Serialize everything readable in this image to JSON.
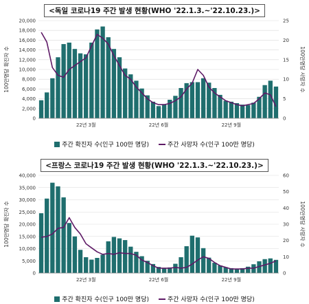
{
  "colors": {
    "bar": "#1f6e6e",
    "line": "#5e1a66",
    "grid": "#d9d9d9"
  },
  "chart_data": [
    {
      "type": "bar",
      "title": "<독일 코로나19 주간 발생 현황(WHO '22.1.3.~'22.10.23.)>",
      "ylabel_left": "100만명당 확진자 수",
      "ylabel_right": "100만명당 사망자 수",
      "ylim_left": [
        0,
        20000
      ],
      "yticks_left": [
        "0",
        "2,000",
        "4,000",
        "6,000",
        "8,000",
        "10,000",
        "12,000",
        "14,000",
        "16,000",
        "18,000",
        "20,000"
      ],
      "ylim_right": [
        0,
        25
      ],
      "yticks_right": [
        "0",
        "5",
        "10",
        "15",
        "20",
        "25"
      ],
      "xlabels": [
        {
          "index": 8,
          "label": "22년 3월"
        },
        {
          "index": 21,
          "label": "22년 6월"
        },
        {
          "index": 34,
          "label": "22년 9월"
        }
      ],
      "legend": {
        "bar": "주간 확진자 수(인구 100만 명당)",
        "line": "주간 사망자 수(인구 100만 명당)"
      },
      "series": [
        {
          "name": "주간 확진자 수(인구 100만 명당)",
          "kind": "bar",
          "values": [
            3700,
            5300,
            8200,
            12500,
            15200,
            15500,
            14200,
            13300,
            13100,
            15500,
            18200,
            18800,
            16600,
            14200,
            12500,
            10200,
            9000,
            7700,
            6100,
            4700,
            3400,
            2500,
            2900,
            3800,
            4600,
            6200,
            7200,
            7400,
            7400,
            8200,
            7300,
            6200,
            4800,
            3600,
            3400,
            3100,
            2800,
            2700,
            3200,
            4400,
            6800,
            7700,
            6500
          ]
        },
        {
          "name": "주간 사망자 수(인구 100만 명당)",
          "kind": "line",
          "values": [
            22,
            19.5,
            13,
            11,
            10.5,
            12.5,
            13.5,
            14.5,
            15.5,
            18.5,
            21.5,
            20.5,
            19,
            16,
            13.5,
            11,
            10,
            8,
            6.5,
            5,
            4,
            3.5,
            3.5,
            3.8,
            4.5,
            5.5,
            7.5,
            9,
            12.5,
            11,
            8,
            6.5,
            5.5,
            4.5,
            4,
            3.5,
            3.2,
            3.5,
            3.8,
            5,
            6.5,
            6,
            3
          ]
        }
      ]
    },
    {
      "type": "bar",
      "title": "<프랑스 코로나19 주간 발생 현황(WHO '22.1.3.~'22.10.23.)>",
      "ylabel_left": "100만명당 확진자 수",
      "ylabel_right": "100만명당 사망자 수",
      "ylim_left": [
        0,
        40000
      ],
      "yticks_left": [
        "0",
        "5,000",
        "10,000",
        "15,000",
        "20,000",
        "25,000",
        "30,000",
        "35,000",
        "40,000"
      ],
      "ylim_right": [
        0,
        60
      ],
      "yticks_right": [
        "0",
        "10",
        "20",
        "30",
        "40",
        "50",
        "60"
      ],
      "xlabels": [
        {
          "index": 8,
          "label": "22년 3월"
        },
        {
          "index": 21,
          "label": "22년 6월"
        },
        {
          "index": 34,
          "label": "22년 9월"
        }
      ],
      "legend": {
        "bar": "주간 확진자 수(인구 100만 명당)",
        "line": "주간 사망자 수(인구 100만 명당)"
      },
      "series": [
        {
          "name": "주간 확진자 수(인구 100만 명당)",
          "kind": "bar",
          "values": [
            24500,
            30500,
            37000,
            35500,
            31000,
            20500,
            15000,
            9500,
            6500,
            5500,
            6200,
            7500,
            13000,
            14800,
            14200,
            13500,
            10800,
            8700,
            6900,
            5000,
            3700,
            2500,
            2100,
            2300,
            3800,
            6500,
            11000,
            15300,
            14600,
            10200,
            6300,
            4200,
            3100,
            2400,
            2000,
            1800,
            2000,
            2600,
            3600,
            4800,
            5700,
            6000,
            5400
          ]
        },
        {
          "name": "주간 사망자 수(인구 100만 명당)",
          "kind": "line",
          "values": [
            22,
            22.5,
            24,
            27.5,
            28,
            34,
            28,
            24,
            18,
            15.5,
            13,
            11.5,
            12,
            11.5,
            12.5,
            12,
            12,
            11,
            8,
            6.5,
            4.5,
            3,
            3,
            3,
            3.5,
            3,
            3.5,
            5.5,
            8,
            10,
            9,
            6.5,
            4.5,
            3.5,
            2.5,
            2.5,
            2.5,
            3,
            3,
            4,
            5,
            6,
            7.5
          ]
        }
      ]
    }
  ]
}
